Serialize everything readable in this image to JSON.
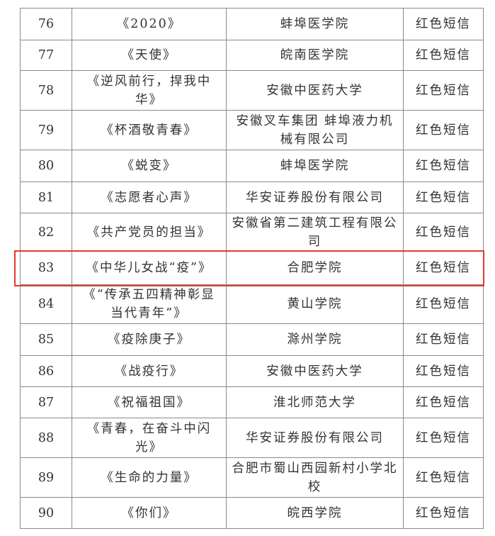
{
  "highlight_color": "#e53935",
  "highlighted_row_no": "83",
  "rows": [
    {
      "no": "76",
      "title": "《2020》",
      "org": "蚌埠医学院",
      "type": "红色短信"
    },
    {
      "no": "77",
      "title": "《天使》",
      "org": "皖南医学院",
      "type": "红色短信"
    },
    {
      "no": "78",
      "title": "《逆风前行，捍我中华》",
      "org": "安徽中医药大学",
      "type": "红色短信"
    },
    {
      "no": "79",
      "title": "《杯酒敬青春》",
      "org": "安徽叉车集团 蚌埠液力机械有限公司",
      "type": "红色短信"
    },
    {
      "no": "80",
      "title": "《蜕变》",
      "org": "蚌埠医学院",
      "type": "红色短信"
    },
    {
      "no": "81",
      "title": "《志愿者心声》",
      "org": "华安证券股份有限公司",
      "type": "红色短信"
    },
    {
      "no": "82",
      "title": "《共产党员的担当》",
      "org": "安徽省第二建筑工程有限公司",
      "type": "红色短信"
    },
    {
      "no": "83",
      "title": "《中华儿女战“疫”》",
      "org": "合肥学院",
      "type": "红色短信"
    },
    {
      "no": "84",
      "title": "《“传承五四精神彰显当代青年”》",
      "org": "黄山学院",
      "type": "红色短信"
    },
    {
      "no": "85",
      "title": "《疫除庚子》",
      "org": "滁州学院",
      "type": "红色短信"
    },
    {
      "no": "86",
      "title": "《战疫行》",
      "org": "安徽中医药大学",
      "type": "红色短信"
    },
    {
      "no": "87",
      "title": "《祝福祖国》",
      "org": "淮北师范大学",
      "type": "红色短信"
    },
    {
      "no": "88",
      "title": "《青春，在奋斗中闪光》",
      "org": "华安证券股份有限公司",
      "type": "红色短信"
    },
    {
      "no": "89",
      "title": "《生命的力量》",
      "org": "合肥市蜀山西园新村小学北校",
      "type": "红色短信"
    },
    {
      "no": "90",
      "title": "《你们》",
      "org": "皖西学院",
      "type": "红色短信"
    }
  ]
}
